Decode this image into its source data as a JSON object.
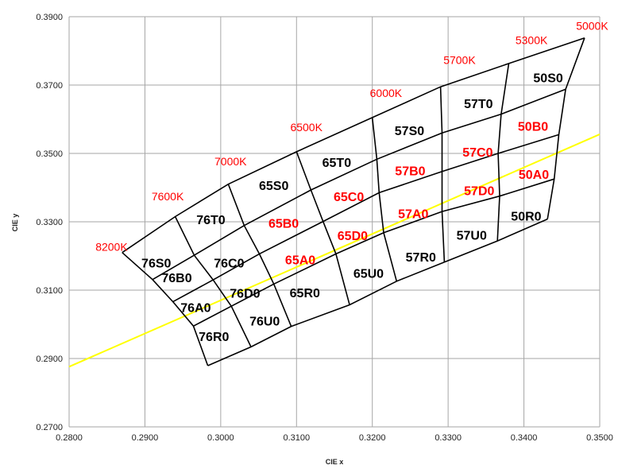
{
  "chart_data": {
    "type": "diagram",
    "xlabel": "CIE x",
    "ylabel": "CIE y",
    "xlim": [
      0.28,
      0.35
    ],
    "ylim": [
      0.27,
      0.39
    ],
    "x_ticks": [
      "0.2800",
      "0.2900",
      "0.3000",
      "0.3100",
      "0.3200",
      "0.3300",
      "0.3400",
      "0.3500"
    ],
    "y_ticks": [
      "0.2700",
      "0.2900",
      "0.3100",
      "0.3300",
      "0.3500",
      "0.3700",
      "0.3900"
    ],
    "colors": {
      "grid": "#a6a6a6",
      "line": "#000000",
      "locus": "#ffff00",
      "highlight": "#ff0000",
      "text": "#000000"
    },
    "locus_line": [
      [
        0.28,
        0.2876
      ],
      [
        0.35,
        0.3556
      ]
    ],
    "cct_labels": [
      {
        "text": "8200K",
        "x": 0.2856,
        "y": 0.3215
      },
      {
        "text": "7600K",
        "x": 0.293,
        "y": 0.3363
      },
      {
        "text": "7000K",
        "x": 0.3013,
        "y": 0.3465
      },
      {
        "text": "6500K",
        "x": 0.3113,
        "y": 0.3565
      },
      {
        "text": "6000K",
        "x": 0.3218,
        "y": 0.3665
      },
      {
        "text": "5700K",
        "x": 0.3315,
        "y": 0.3762
      },
      {
        "text": "5300K",
        "x": 0.341,
        "y": 0.382
      },
      {
        "text": "5000K",
        "x": 0.349,
        "y": 0.3862
      }
    ],
    "bins": [
      {
        "label": "76S0",
        "x": 0.2915,
        "y": 0.318,
        "highlight": false
      },
      {
        "label": "76B0",
        "x": 0.2942,
        "y": 0.3137,
        "highlight": false
      },
      {
        "label": "76A0",
        "x": 0.2967,
        "y": 0.305,
        "highlight": false
      },
      {
        "label": "76R0",
        "x": 0.2991,
        "y": 0.2965,
        "highlight": false
      },
      {
        "label": "76T0",
        "x": 0.2987,
        "y": 0.3307,
        "highlight": false
      },
      {
        "label": "76C0",
        "x": 0.3011,
        "y": 0.318,
        "highlight": false
      },
      {
        "label": "76D0",
        "x": 0.3032,
        "y": 0.3092,
        "highlight": false
      },
      {
        "label": "76U0",
        "x": 0.3058,
        "y": 0.301,
        "highlight": false
      },
      {
        "label": "65S0",
        "x": 0.307,
        "y": 0.3407,
        "highlight": false
      },
      {
        "label": "65B0",
        "x": 0.3083,
        "y": 0.3297,
        "highlight": true
      },
      {
        "label": "65A0",
        "x": 0.3105,
        "y": 0.319,
        "highlight": true
      },
      {
        "label": "65R0",
        "x": 0.3111,
        "y": 0.3093,
        "highlight": false
      },
      {
        "label": "65T0",
        "x": 0.3153,
        "y": 0.3475,
        "highlight": false
      },
      {
        "label": "65C0",
        "x": 0.3169,
        "y": 0.3375,
        "highlight": true
      },
      {
        "label": "65D0",
        "x": 0.3174,
        "y": 0.326,
        "highlight": true
      },
      {
        "label": "65U0",
        "x": 0.3195,
        "y": 0.315,
        "highlight": false
      },
      {
        "label": "57S0",
        "x": 0.3249,
        "y": 0.3568,
        "highlight": false
      },
      {
        "label": "57B0",
        "x": 0.325,
        "y": 0.345,
        "highlight": true
      },
      {
        "label": "57A0",
        "x": 0.3254,
        "y": 0.3325,
        "highlight": true
      },
      {
        "label": "57R0",
        "x": 0.3264,
        "y": 0.3198,
        "highlight": false
      },
      {
        "label": "57T0",
        "x": 0.334,
        "y": 0.3647,
        "highlight": false
      },
      {
        "label": "57C0",
        "x": 0.3339,
        "y": 0.3505,
        "highlight": true
      },
      {
        "label": "57D0",
        "x": 0.3341,
        "y": 0.3392,
        "highlight": true
      },
      {
        "label": "57U0",
        "x": 0.3331,
        "y": 0.3262,
        "highlight": false
      },
      {
        "label": "50S0",
        "x": 0.3432,
        "y": 0.3722,
        "highlight": false
      },
      {
        "label": "50B0",
        "x": 0.3412,
        "y": 0.358,
        "highlight": true
      },
      {
        "label": "50A0",
        "x": 0.3413,
        "y": 0.344,
        "highlight": true
      },
      {
        "label": "50R0",
        "x": 0.3403,
        "y": 0.3318,
        "highlight": false
      }
    ],
    "columns": [
      [
        [
          0.287,
          0.321
        ],
        [
          0.291,
          0.3131
        ],
        [
          0.2937,
          0.3066
        ],
        [
          0.2964,
          0.2995
        ],
        [
          0.2983,
          0.2879
        ]
      ],
      [
        [
          0.294,
          0.3315
        ],
        [
          0.2965,
          0.3202
        ],
        [
          0.299,
          0.313
        ],
        [
          0.3014,
          0.3053
        ],
        [
          0.304,
          0.2934
        ]
      ],
      [
        [
          0.301,
          0.341
        ],
        [
          0.3031,
          0.3289
        ],
        [
          0.3051,
          0.3206
        ],
        [
          0.307,
          0.3118
        ],
        [
          0.3093,
          0.2994
        ]
      ],
      [
        [
          0.31,
          0.3505
        ],
        [
          0.3119,
          0.3393
        ],
        [
          0.3135,
          0.3301
        ],
        [
          0.3152,
          0.3206
        ],
        [
          0.317,
          0.3057
        ]
      ],
      [
        [
          0.32,
          0.3605
        ],
        [
          0.3206,
          0.3483
        ],
        [
          0.3209,
          0.3385
        ],
        [
          0.3215,
          0.3268
        ],
        [
          0.3232,
          0.3126
        ]
      ],
      [
        [
          0.329,
          0.3695
        ],
        [
          0.3292,
          0.356
        ],
        [
          0.3292,
          0.3447
        ],
        [
          0.3292,
          0.333
        ],
        [
          0.3295,
          0.3182
        ]
      ],
      [
        [
          0.338,
          0.3763
        ],
        [
          0.337,
          0.3615
        ],
        [
          0.3366,
          0.35
        ],
        [
          0.3368,
          0.3375
        ],
        [
          0.3365,
          0.3244
        ]
      ],
      [
        [
          0.348,
          0.3838
        ],
        [
          0.3455,
          0.3688
        ],
        [
          0.3446,
          0.3555
        ],
        [
          0.344,
          0.3425
        ],
        [
          0.3431,
          0.3308
        ]
      ]
    ]
  }
}
